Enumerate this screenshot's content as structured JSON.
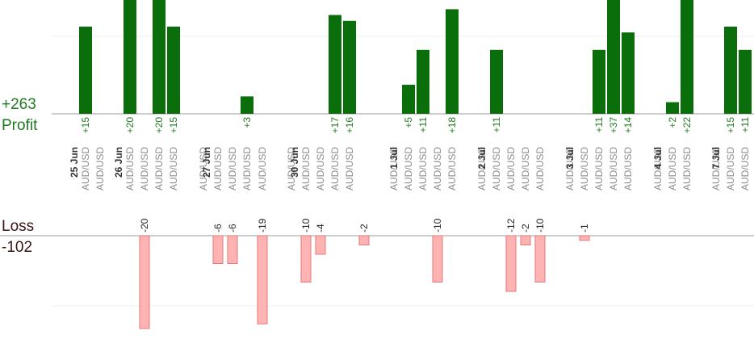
{
  "summary": {
    "profit_total": "+263",
    "profit_label": "Profit",
    "loss_label": "Loss",
    "loss_total": "-102"
  },
  "colors": {
    "profit": "#0a6e0a",
    "profit_text": "#1f7a1f",
    "loss_fill": "#ffb3b3",
    "loss_stroke": "#e07a7a",
    "loss_text": "#222222",
    "date_text": "#333333",
    "pair_text": "#8c8c8c",
    "baseline": "#999999",
    "grid": "#eeeeee"
  },
  "chart_data": {
    "type": "bar",
    "pair": "AUD/USD",
    "date_labels": [
      "25 Jun",
      "26 Jun",
      "27 Jun",
      "30 Jun",
      "1 Jul",
      "2 Jul",
      "3 Jul",
      "4 Jul",
      "7 Jul"
    ],
    "profit_values": [
      15,
      20,
      20,
      15,
      3,
      17,
      16,
      5,
      11,
      18,
      11,
      11,
      37,
      14,
      2,
      22,
      15,
      11
    ],
    "profit_labels": [
      "+15",
      "+20",
      "+20",
      "+15",
      "+3",
      "+17",
      "+16",
      "+5",
      "+11",
      "+18",
      "+11",
      "+11",
      "+37",
      "+14",
      "+2",
      "+22",
      "+15",
      "+11"
    ],
    "loss_values": [
      -20,
      -6,
      -6,
      -19,
      -10,
      -4,
      -2,
      -10,
      -12,
      -2,
      -10,
      -1
    ],
    "loss_labels": [
      "-20",
      "-6",
      "-6",
      "-19",
      "-10",
      "-4",
      "-2",
      "-10",
      "-12",
      "-2",
      "-10",
      "-1"
    ]
  }
}
